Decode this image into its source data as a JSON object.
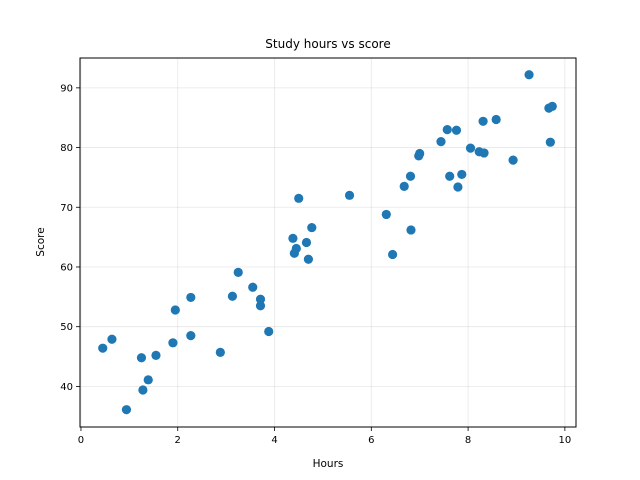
{
  "chart_data": {
    "type": "scatter",
    "title": "Study hours vs score",
    "xlabel": "Hours",
    "ylabel": "Score",
    "xlim": [
      -0.02,
      10.23
    ],
    "ylim": [
      33.2,
      95.0
    ],
    "xticks": [
      0,
      2,
      4,
      6,
      8,
      10
    ],
    "yticks": [
      40,
      50,
      60,
      70,
      80,
      90
    ],
    "grid": true,
    "marker_color": "#1f77b4",
    "points": [
      {
        "x": 0.45,
        "y": 46.4
      },
      {
        "x": 0.64,
        "y": 47.9
      },
      {
        "x": 0.94,
        "y": 36.1
      },
      {
        "x": 1.25,
        "y": 44.8
      },
      {
        "x": 1.28,
        "y": 39.4
      },
      {
        "x": 1.39,
        "y": 41.1
      },
      {
        "x": 1.55,
        "y": 45.2
      },
      {
        "x": 1.9,
        "y": 47.3
      },
      {
        "x": 1.95,
        "y": 52.8
      },
      {
        "x": 2.27,
        "y": 48.5
      },
      {
        "x": 2.27,
        "y": 54.9
      },
      {
        "x": 2.88,
        "y": 45.7
      },
      {
        "x": 3.13,
        "y": 55.1
      },
      {
        "x": 3.25,
        "y": 59.1
      },
      {
        "x": 3.55,
        "y": 56.6
      },
      {
        "x": 3.71,
        "y": 53.5
      },
      {
        "x": 3.71,
        "y": 54.6
      },
      {
        "x": 3.88,
        "y": 49.2
      },
      {
        "x": 4.38,
        "y": 64.8
      },
      {
        "x": 4.41,
        "y": 62.3
      },
      {
        "x": 4.45,
        "y": 63.1
      },
      {
        "x": 4.5,
        "y": 71.5
      },
      {
        "x": 4.66,
        "y": 64.1
      },
      {
        "x": 4.7,
        "y": 61.3
      },
      {
        "x": 4.77,
        "y": 66.6
      },
      {
        "x": 5.55,
        "y": 72.0
      },
      {
        "x": 6.31,
        "y": 68.8
      },
      {
        "x": 6.44,
        "y": 62.1
      },
      {
        "x": 6.68,
        "y": 73.5
      },
      {
        "x": 6.81,
        "y": 75.2
      },
      {
        "x": 6.82,
        "y": 66.2
      },
      {
        "x": 6.98,
        "y": 78.6
      },
      {
        "x": 7.0,
        "y": 79.0
      },
      {
        "x": 7.44,
        "y": 81.0
      },
      {
        "x": 7.57,
        "y": 83.0
      },
      {
        "x": 7.62,
        "y": 75.2
      },
      {
        "x": 7.76,
        "y": 82.9
      },
      {
        "x": 7.79,
        "y": 73.4
      },
      {
        "x": 7.87,
        "y": 75.5
      },
      {
        "x": 8.05,
        "y": 79.9
      },
      {
        "x": 8.23,
        "y": 79.3
      },
      {
        "x": 8.31,
        "y": 84.4
      },
      {
        "x": 8.33,
        "y": 79.1
      },
      {
        "x": 8.58,
        "y": 84.7
      },
      {
        "x": 8.93,
        "y": 77.9
      },
      {
        "x": 9.26,
        "y": 92.2
      },
      {
        "x": 9.67,
        "y": 86.6
      },
      {
        "x": 9.7,
        "y": 80.9
      },
      {
        "x": 9.74,
        "y": 86.9
      }
    ]
  }
}
